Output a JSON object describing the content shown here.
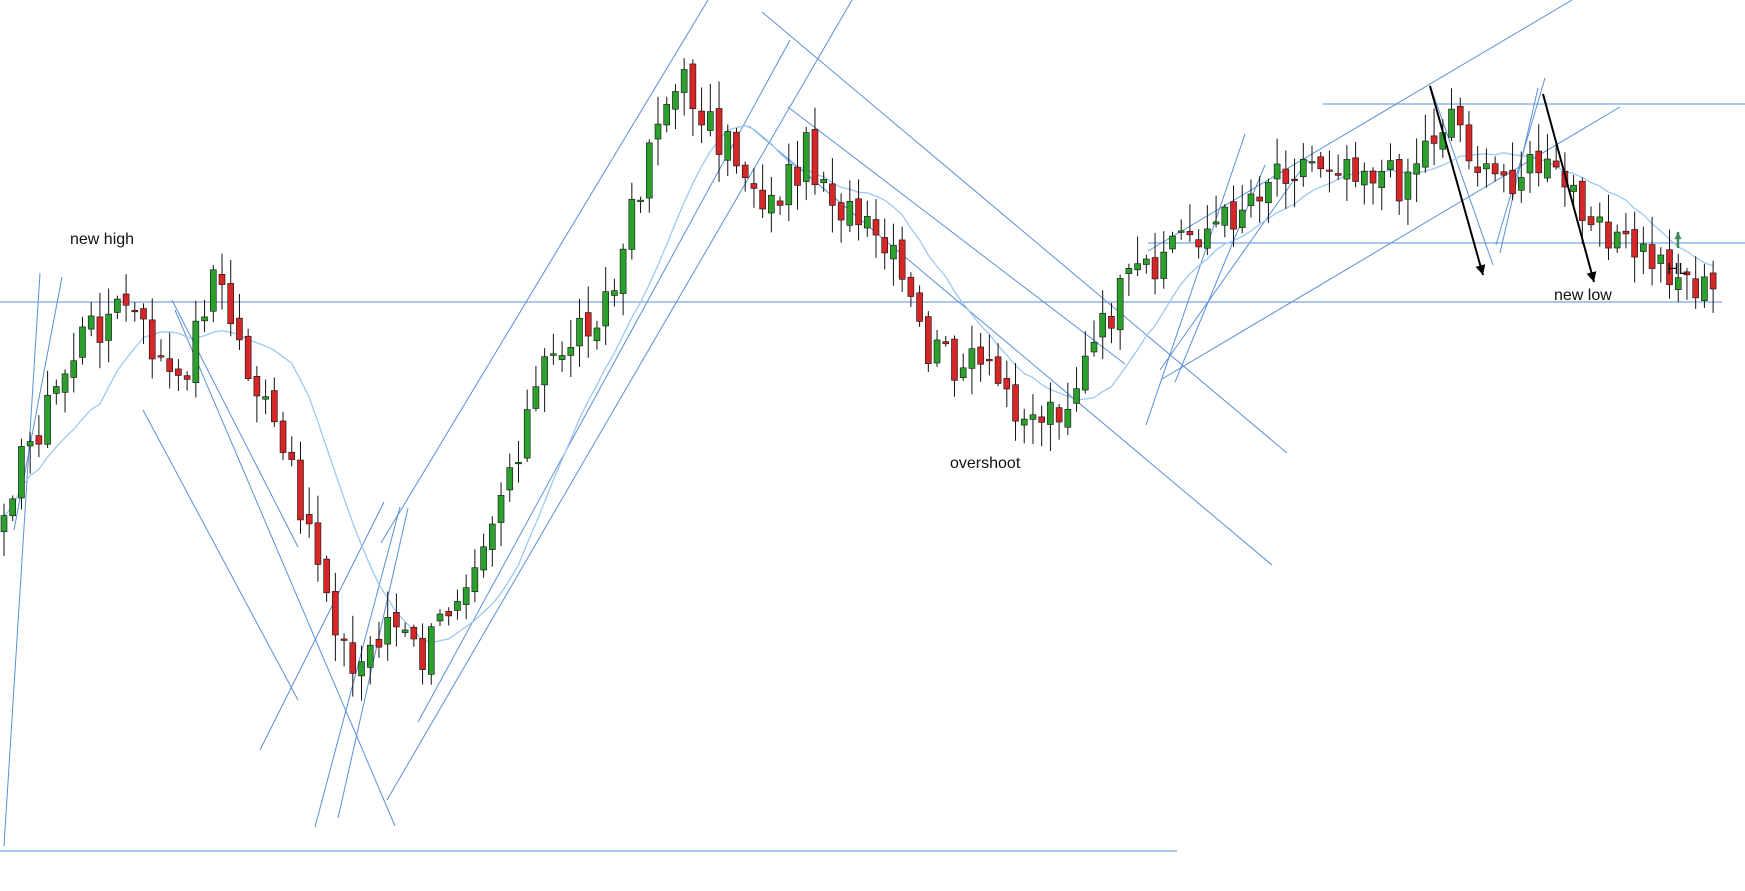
{
  "annotations": {
    "new_high": "new high",
    "overshoot": "overshoot",
    "new_low": "new low",
    "hl": "HL"
  },
  "colors": {
    "bull": "#2ca02c",
    "bear": "#d62728",
    "wick": "#111111",
    "trendline": "#5b8fd8",
    "ma": "#9ec8ef",
    "arrow_black": "#000000",
    "arrow_green": "#3d8b5e"
  },
  "chart_data": {
    "type": "candlestick",
    "x_axis": "none",
    "y_axis": "none",
    "grid": false,
    "legend": "none",
    "waypoints": [
      [
        0,
        58
      ],
      [
        9,
        38
      ],
      [
        14,
        34
      ],
      [
        20,
        45
      ],
      [
        24,
        30
      ],
      [
        28,
        42
      ],
      [
        34,
        58
      ],
      [
        40,
        80
      ],
      [
        44,
        73
      ],
      [
        48,
        78
      ],
      [
        56,
        60
      ],
      [
        62,
        42
      ],
      [
        70,
        32
      ],
      [
        75,
        10
      ],
      [
        78,
        7
      ],
      [
        84,
        16
      ],
      [
        88,
        22
      ],
      [
        92,
        15
      ],
      [
        96,
        22
      ],
      [
        102,
        29
      ],
      [
        106,
        40
      ],
      [
        112,
        42
      ],
      [
        118,
        48
      ],
      [
        122,
        46
      ],
      [
        128,
        33
      ],
      [
        134,
        26
      ],
      [
        140,
        24
      ],
      [
        146,
        17
      ],
      [
        154,
        16
      ],
      [
        160,
        19
      ],
      [
        166,
        10
      ],
      [
        170,
        19
      ],
      [
        176,
        17
      ],
      [
        182,
        22
      ],
      [
        186,
        27
      ],
      [
        190,
        29
      ],
      [
        196,
        33
      ]
    ],
    "moving_average_period": 12
  }
}
